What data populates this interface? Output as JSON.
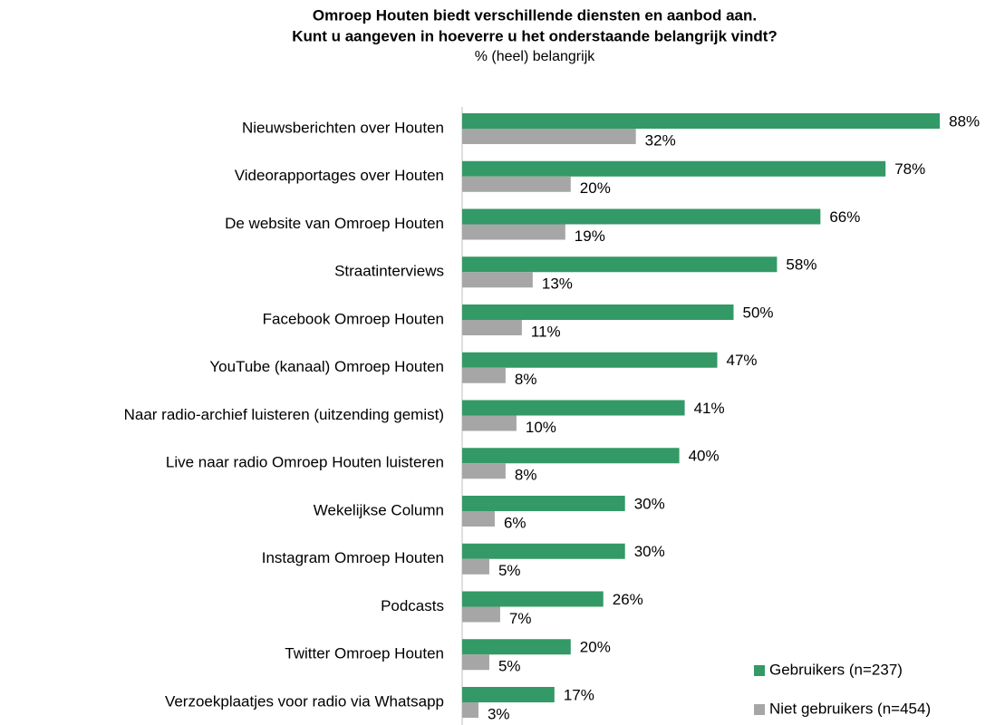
{
  "chart_data": {
    "type": "bar",
    "orientation": "horizontal",
    "title": "Omroep Houten biedt verschillende diensten en aanbod aan.",
    "title_line2": "Kunt u aangeven in hoeverre u het onderstaande belangrijk vindt?",
    "subtitle": "% (heel) belangrijk",
    "categories": [
      "Nieuwsberichten over Houten",
      "Videorapportages over Houten",
      "De website van Omroep Houten",
      "Straatinterviews",
      "Facebook Omroep Houten",
      "YouTube (kanaal) Omroep Houten",
      "Naar radio-archief luisteren (uitzending gemist)",
      "Live naar radio Omroep Houten luisteren",
      "Wekelijkse Column",
      "Instagram Omroep Houten",
      "Podcasts",
      "Twitter Omroep Houten",
      "Verzoekplaatjes voor radio via Whatsapp"
    ],
    "series": [
      {
        "name": "Gebruikers (n=237)",
        "color": "#339966",
        "values": [
          88,
          78,
          66,
          58,
          50,
          47,
          41,
          40,
          30,
          30,
          26,
          20,
          17
        ],
        "value_labels": [
          "88%",
          "78%",
          "66%",
          "58%",
          "50%",
          "47%",
          "41%",
          "40%",
          "30%",
          "30%",
          "26%",
          "20%",
          "17%"
        ]
      },
      {
        "name": "Niet gebruikers (n=454)",
        "color": "#a6a6a6",
        "values": [
          32,
          20,
          19,
          13,
          11,
          8,
          10,
          8,
          6,
          5,
          7,
          5,
          3
        ],
        "value_labels": [
          "32%",
          "20%",
          "19%",
          "13%",
          "11%",
          "8%",
          "10%",
          "8%",
          "6%",
          "5%",
          "7%",
          "5%",
          "3%"
        ]
      }
    ],
    "legend": "bottom-right"
  }
}
